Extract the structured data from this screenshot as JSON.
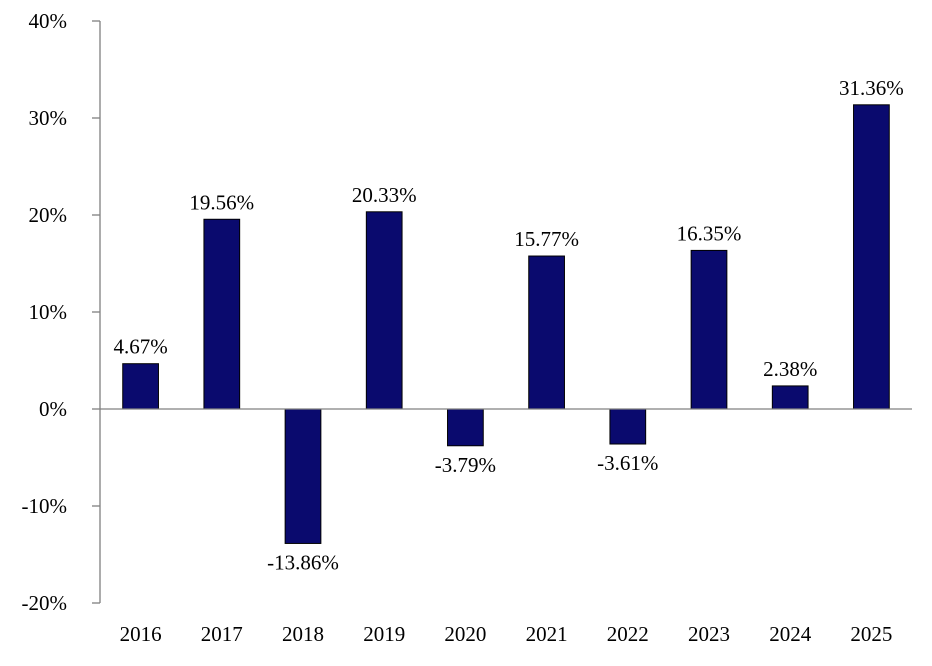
{
  "chart_data": {
    "type": "bar",
    "categories": [
      "2016",
      "2017",
      "2018",
      "2019",
      "2020",
      "2021",
      "2022",
      "2023",
      "2024",
      "2025"
    ],
    "values": [
      4.67,
      19.56,
      -13.86,
      20.33,
      -3.79,
      15.77,
      -3.61,
      16.35,
      2.38,
      31.36
    ],
    "data_labels": [
      "4.67%",
      "19.56%",
      "-13.86%",
      "20.33%",
      "-3.79%",
      "15.77%",
      "-3.61%",
      "16.35%",
      "2.38%",
      "31.36%"
    ],
    "y_ticks": [
      40,
      30,
      20,
      10,
      0,
      -10,
      -20
    ],
    "y_tick_labels": [
      "40%",
      "30%",
      "20%",
      "10%",
      "0%",
      "-10%",
      "-20%"
    ],
    "ylim": [
      -20,
      40
    ],
    "title": "",
    "xlabel": "",
    "ylabel": "",
    "grid": false,
    "legend": "none",
    "colors": {
      "bar": "#0a0a6e",
      "axis": "#808080",
      "text": "#000000"
    }
  }
}
